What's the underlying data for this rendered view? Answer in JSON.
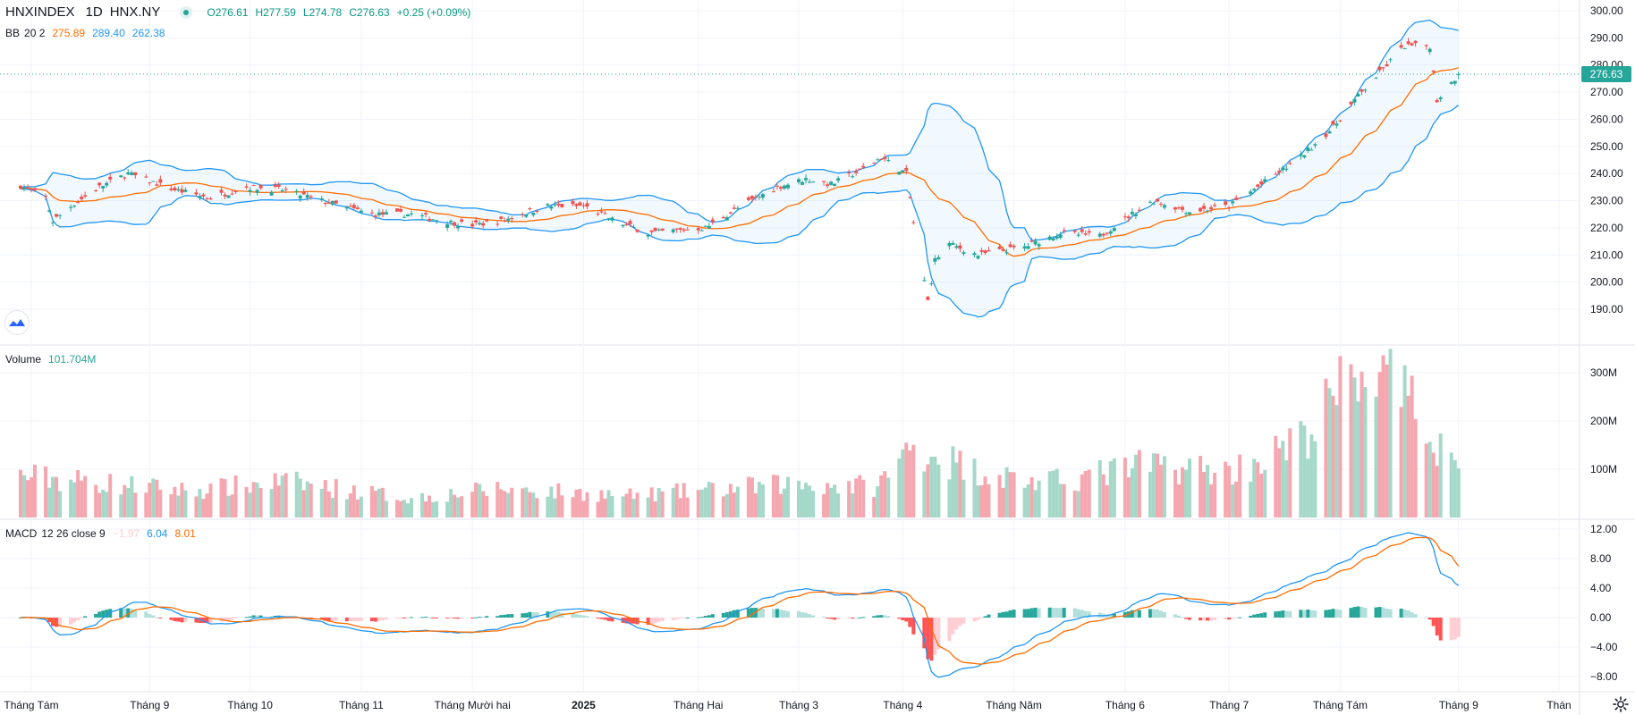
{
  "header": {
    "symbol": "HNXINDEX",
    "interval": "1D",
    "exchange": "HNX.NY",
    "open": "O276.61",
    "high": "H277.59",
    "low": "L274.78",
    "close": "C276.63",
    "change": "+0.25 (+0.09%)",
    "market_dot_icon": "status-dot-icon"
  },
  "bb_legend": {
    "name": "BB",
    "params": "20 2",
    "basis": "275.89",
    "upper": "289.40",
    "lower": "262.38"
  },
  "volume_legend": {
    "name": "Volume",
    "value": "101.704M"
  },
  "macd_legend": {
    "name": "MACD",
    "params": "12 26 close 9",
    "hist": "−1.97",
    "macd": "6.04",
    "signal": "8.01"
  },
  "price_axis": [
    "300.00",
    "290.00",
    "280.00",
    "270.00",
    "260.00",
    "250.00",
    "240.00",
    "230.00",
    "220.00",
    "210.00",
    "200.00",
    "190.00"
  ],
  "volume_axis": [
    "300M",
    "200M",
    "100M"
  ],
  "macd_axis": [
    "12.00",
    "8.00",
    "4.00",
    "0.00",
    "−4.00",
    "−8.00"
  ],
  "last_price_label": "276.63",
  "time_axis": [
    "Tháng Tám",
    "Tháng 9",
    "Tháng 10",
    "Tháng 11",
    "Tháng Mười hai",
    "2025",
    "Tháng Hai",
    "Tháng 3",
    "Tháng 4",
    "Tháng Năm",
    "Tháng 6",
    "Tháng 7",
    "Tháng Tám",
    "Tháng 9",
    "Thán"
  ],
  "colors": {
    "up": "#26a69a",
    "down": "#ef5350",
    "vol_up": "#a5d8c8",
    "vol_down": "#f5a7b0",
    "bb_band": "#2196f3",
    "bb_basis": "#ff6d00",
    "macd_line": "#2196f3",
    "signal_line": "#ff6d00",
    "hist_up_strong": "#26a69a",
    "hist_up_weak": "#b2dfdb",
    "hist_down_strong": "#ff5252",
    "hist_down_weak": "#ffcdd2",
    "grid": "#f0f3fa",
    "text": "#131722",
    "green_text": "#089981"
  },
  "chart_data": {
    "type": "candlestick",
    "title": "HNXINDEX 1D HNX.NY",
    "price_ylim": [
      185,
      301
    ],
    "volume_ylim": [
      0,
      330
    ],
    "macd_ylim": [
      -9,
      13
    ],
    "x_start": "2024-07-29",
    "x_end": "2025-09-30",
    "last_bar": {
      "open": 276.61,
      "high": 277.59,
      "low": 274.78,
      "close": 276.63,
      "change": 0.25,
      "change_pct": 0.09
    },
    "bb_last": {
      "basis": 275.89,
      "upper": 289.4,
      "lower": 262.38
    },
    "volume_last_m": 101.704,
    "macd_last": {
      "hist": -1.97,
      "macd": 6.04,
      "signal": 8.01
    },
    "month_ticks": [
      {
        "label": "Tháng Tám",
        "date": "2024-08-01"
      },
      {
        "label": "Tháng 9",
        "date": "2024-09-03"
      },
      {
        "label": "Tháng 10",
        "date": "2024-10-01"
      },
      {
        "label": "Tháng 11",
        "date": "2024-11-01"
      },
      {
        "label": "Tháng Mười hai",
        "date": "2024-12-02"
      },
      {
        "label": "2025",
        "date": "2025-01-02"
      },
      {
        "label": "Tháng Hai",
        "date": "2025-02-03"
      },
      {
        "label": "Tháng 3",
        "date": "2025-03-03"
      },
      {
        "label": "Tháng 4",
        "date": "2025-04-01"
      },
      {
        "label": "Tháng Năm",
        "date": "2025-05-02"
      },
      {
        "label": "Tháng 6",
        "date": "2025-06-02"
      },
      {
        "label": "Tháng 7",
        "date": "2025-07-01"
      },
      {
        "label": "Tháng Tám",
        "date": "2025-08-01"
      },
      {
        "label": "Tháng 9",
        "date": "2025-09-03"
      },
      {
        "label": "Thán",
        "date": "2025-10-01"
      }
    ],
    "close_path": [
      {
        "date": "2024-07-29",
        "close": 235.5
      },
      {
        "date": "2024-08-05",
        "close": 231
      },
      {
        "date": "2024-08-07",
        "close": 222.5
      },
      {
        "date": "2024-08-12",
        "close": 228
      },
      {
        "date": "2024-08-20",
        "close": 235
      },
      {
        "date": "2024-08-28",
        "close": 240
      },
      {
        "date": "2024-09-10",
        "close": 234
      },
      {
        "date": "2024-09-20",
        "close": 231
      },
      {
        "date": "2024-09-30",
        "close": 235
      },
      {
        "date": "2024-10-10",
        "close": 234
      },
      {
        "date": "2024-10-21",
        "close": 230
      },
      {
        "date": "2024-11-04",
        "close": 225
      },
      {
        "date": "2024-11-15",
        "close": 225
      },
      {
        "date": "2024-11-26",
        "close": 222
      },
      {
        "date": "2024-12-02",
        "close": 221
      },
      {
        "date": "2024-12-10",
        "close": 222.5
      },
      {
        "date": "2024-12-18",
        "close": 226
      },
      {
        "date": "2024-12-23",
        "close": 228
      },
      {
        "date": "2025-01-02",
        "close": 228
      },
      {
        "date": "2025-01-10",
        "close": 223
      },
      {
        "date": "2025-01-20",
        "close": 218
      },
      {
        "date": "2025-02-05",
        "close": 220
      },
      {
        "date": "2025-02-15",
        "close": 228
      },
      {
        "date": "2025-02-25",
        "close": 235
      },
      {
        "date": "2025-03-05",
        "close": 238
      },
      {
        "date": "2025-03-12",
        "close": 236
      },
      {
        "date": "2025-03-20",
        "close": 241
      },
      {
        "date": "2025-03-26",
        "close": 246
      },
      {
        "date": "2025-04-02",
        "close": 240
      },
      {
        "date": "2025-04-04",
        "close": 222
      },
      {
        "date": "2025-04-08",
        "close": 193
      },
      {
        "date": "2025-04-10",
        "close": 208
      },
      {
        "date": "2025-04-14",
        "close": 214
      },
      {
        "date": "2025-04-22",
        "close": 210
      },
      {
        "date": "2025-05-05",
        "close": 213
      },
      {
        "date": "2025-05-15",
        "close": 218
      },
      {
        "date": "2025-05-26",
        "close": 217
      },
      {
        "date": "2025-06-05",
        "close": 226
      },
      {
        "date": "2025-06-10",
        "close": 230
      },
      {
        "date": "2025-06-20",
        "close": 226
      },
      {
        "date": "2025-07-01",
        "close": 228
      },
      {
        "date": "2025-07-10",
        "close": 236
      },
      {
        "date": "2025-07-20",
        "close": 245
      },
      {
        "date": "2025-07-30",
        "close": 257
      },
      {
        "date": "2025-08-05",
        "close": 267
      },
      {
        "date": "2025-08-14",
        "close": 280
      },
      {
        "date": "2025-08-19",
        "close": 287
      },
      {
        "date": "2025-08-26",
        "close": 287
      },
      {
        "date": "2025-08-28",
        "close": 267
      },
      {
        "date": "2025-09-03",
        "close": 276.63
      }
    ],
    "volume_path": [
      {
        "date": "2024-08-01",
        "volume_m": 85
      },
      {
        "date": "2024-09-15",
        "volume_m": 55
      },
      {
        "date": "2024-10-10",
        "volume_m": 75
      },
      {
        "date": "2024-11-15",
        "volume_m": 40
      },
      {
        "date": "2024-12-10",
        "volume_m": 60
      },
      {
        "date": "2025-01-15",
        "volume_m": 45
      },
      {
        "date": "2025-03-01",
        "volume_m": 70
      },
      {
        "date": "2025-03-25",
        "volume_m": 65
      },
      {
        "date": "2025-04-04",
        "volume_m": 150
      },
      {
        "date": "2025-04-20",
        "volume_m": 100
      },
      {
        "date": "2025-05-10",
        "volume_m": 70
      },
      {
        "date": "2025-06-10",
        "volume_m": 110
      },
      {
        "date": "2025-07-01",
        "volume_m": 95
      },
      {
        "date": "2025-07-20",
        "volume_m": 150
      },
      {
        "date": "2025-08-08",
        "volume_m": 320
      },
      {
        "date": "2025-08-25",
        "volume_m": 190
      },
      {
        "date": "2025-09-03",
        "volume_m": 101.7
      }
    ]
  }
}
